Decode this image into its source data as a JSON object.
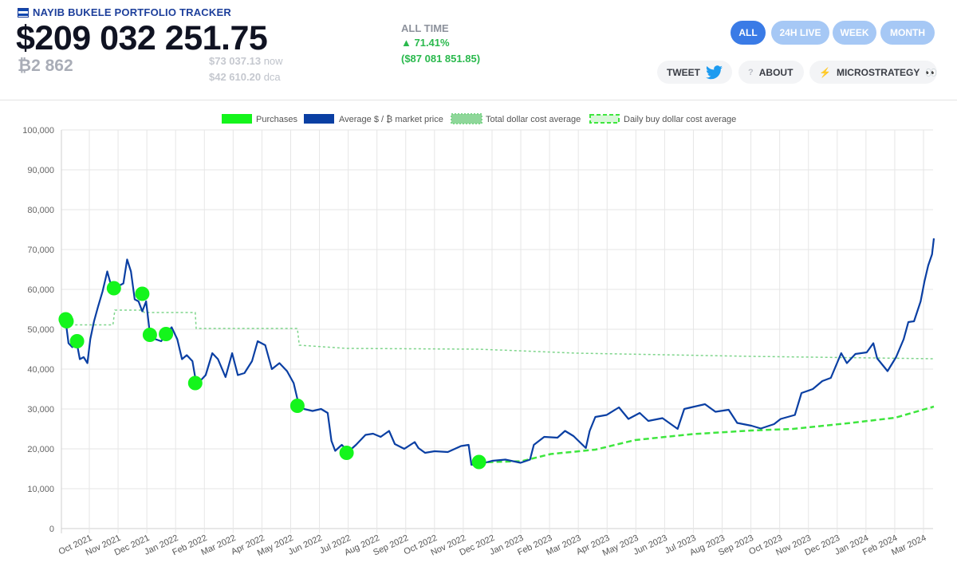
{
  "header": {
    "brand_title": "NAYIB BUKELE PORTFOLIO TRACKER",
    "portfolio_value": "$209 032 251.75",
    "btc_holdings": "₿2 862",
    "price_now_value": "$73 037.13",
    "price_now_label": "now",
    "price_dca_value": "$42 610.20",
    "price_dca_label": "dca",
    "alltime_label": "ALL TIME",
    "alltime_pct": "▲ 71.41%",
    "alltime_abs": "($87 081 851.85)"
  },
  "periods": [
    {
      "label": "ALL",
      "active": true
    },
    {
      "label": "24H LIVE",
      "active": false
    },
    {
      "label": "WEEK",
      "active": false
    },
    {
      "label": "MONTH",
      "active": false
    }
  ],
  "actions": {
    "tweet_label": "TWEET",
    "about_label": "ABOUT",
    "microstrategy_label": "MICROSTRATEGY",
    "about_icon": "question-icon",
    "tweet_icon": "twitter-bird-icon",
    "microstrategy_icon": "lightning-icon",
    "microstrategy_suffix": "👀"
  },
  "chart_data": {
    "type": "line",
    "legend": [
      {
        "label": "Purchases",
        "color": "#14f51c",
        "style": "filled"
      },
      {
        "label": "Average $ / ₿ market price",
        "color": "#0a3fa3",
        "style": "solid"
      },
      {
        "label": "Total dollar cost average",
        "color": "#7ed58b",
        "style": "dotted"
      },
      {
        "label": "Daily buy dollar cost average",
        "color": "#3ee63e",
        "style": "dashed"
      }
    ],
    "legend_position": "top-center",
    "ylim": [
      0,
      100000
    ],
    "y_ticks": [
      "0",
      "10,000",
      "20,000",
      "30,000",
      "40,000",
      "50,000",
      "60,000",
      "70,000",
      "80,000",
      "90,000",
      "100,000"
    ],
    "x_ticks": [
      "Oct 2021",
      "Nov 2021",
      "Dec 2021",
      "Jan 2022",
      "Feb 2022",
      "Mar 2022",
      "Apr 2022",
      "May 2022",
      "Jun 2022",
      "Jul 2022",
      "Aug 2022",
      "Sep 2022",
      "Oct 2022",
      "Nov 2022",
      "Dec 2022",
      "Jan 2023",
      "Feb 2023",
      "Mar 2023",
      "Apr 2023",
      "May 2023",
      "Jun 2023",
      "Jul 2023",
      "Aug 2023",
      "Sep 2023",
      "Oct 2023",
      "Nov 2023",
      "Dec 2023",
      "Jan 2024",
      "Feb 2024",
      "Mar 2024"
    ],
    "grid": true,
    "series": [
      {
        "name": "Average $ / ₿ market price",
        "points": [
          [
            "2021-09-06",
            52000
          ],
          [
            "2021-09-09",
            46500
          ],
          [
            "2021-09-13",
            45500
          ],
          [
            "2021-09-17",
            47500
          ],
          [
            "2021-09-21",
            42500
          ],
          [
            "2021-09-25",
            43000
          ],
          [
            "2021-09-29",
            41500
          ],
          [
            "2021-10-02",
            47500
          ],
          [
            "2021-10-06",
            52000
          ],
          [
            "2021-10-10",
            55500
          ],
          [
            "2021-10-15",
            59500
          ],
          [
            "2021-10-20",
            64500
          ],
          [
            "2021-10-24",
            61000
          ],
          [
            "2021-10-28",
            60500
          ],
          [
            "2021-11-02",
            61000
          ],
          [
            "2021-11-06",
            61500
          ],
          [
            "2021-11-10",
            67500
          ],
          [
            "2021-11-14",
            64500
          ],
          [
            "2021-11-18",
            57500
          ],
          [
            "2021-11-22",
            57000
          ],
          [
            "2021-11-26",
            54500
          ],
          [
            "2021-11-30",
            57000
          ],
          [
            "2021-12-04",
            49000
          ],
          [
            "2021-12-10",
            47500
          ],
          [
            "2021-12-16",
            47000
          ],
          [
            "2021-12-22",
            49000
          ],
          [
            "2021-12-27",
            50500
          ],
          [
            "2022-01-02",
            47500
          ],
          [
            "2022-01-07",
            42500
          ],
          [
            "2022-01-12",
            43500
          ],
          [
            "2022-01-18",
            42000
          ],
          [
            "2022-01-22",
            36500
          ],
          [
            "2022-01-26",
            37000
          ],
          [
            "2022-02-01",
            38500
          ],
          [
            "2022-02-08",
            44000
          ],
          [
            "2022-02-14",
            42500
          ],
          [
            "2022-02-22",
            38000
          ],
          [
            "2022-03-01",
            44000
          ],
          [
            "2022-03-07",
            38500
          ],
          [
            "2022-03-14",
            39000
          ],
          [
            "2022-03-22",
            42000
          ],
          [
            "2022-03-28",
            47000
          ],
          [
            "2022-04-05",
            46000
          ],
          [
            "2022-04-12",
            40000
          ],
          [
            "2022-04-20",
            41500
          ],
          [
            "2022-04-28",
            39500
          ],
          [
            "2022-05-05",
            36500
          ],
          [
            "2022-05-10",
            31500
          ],
          [
            "2022-05-16",
            30000
          ],
          [
            "2022-05-25",
            29500
          ],
          [
            "2022-06-03",
            30000
          ],
          [
            "2022-06-10",
            29000
          ],
          [
            "2022-06-14",
            22000
          ],
          [
            "2022-06-18",
            19500
          ],
          [
            "2022-06-25",
            21000
          ],
          [
            "2022-07-02",
            19300
          ],
          [
            "2022-07-10",
            21000
          ],
          [
            "2022-07-20",
            23500
          ],
          [
            "2022-07-28",
            23800
          ],
          [
            "2022-08-05",
            23000
          ],
          [
            "2022-08-14",
            24500
          ],
          [
            "2022-08-20",
            21200
          ],
          [
            "2022-08-30",
            20000
          ],
          [
            "2022-09-10",
            21700
          ],
          [
            "2022-09-14",
            20200
          ],
          [
            "2022-09-21",
            19000
          ],
          [
            "2022-10-01",
            19400
          ],
          [
            "2022-10-15",
            19200
          ],
          [
            "2022-10-29",
            20700
          ],
          [
            "2022-11-06",
            21000
          ],
          [
            "2022-11-09",
            16000
          ],
          [
            "2022-11-20",
            16300
          ],
          [
            "2022-12-01",
            17000
          ],
          [
            "2022-12-15",
            17300
          ],
          [
            "2022-12-31",
            16500
          ],
          [
            "2023-01-10",
            17300
          ],
          [
            "2023-01-14",
            21000
          ],
          [
            "2023-01-25",
            23000
          ],
          [
            "2023-02-08",
            22800
          ],
          [
            "2023-02-16",
            24500
          ],
          [
            "2023-02-25",
            23200
          ],
          [
            "2023-03-10",
            20200
          ],
          [
            "2023-03-14",
            24500
          ],
          [
            "2023-03-20",
            28000
          ],
          [
            "2023-04-01",
            28500
          ],
          [
            "2023-04-14",
            30400
          ],
          [
            "2023-04-24",
            27500
          ],
          [
            "2023-05-06",
            29000
          ],
          [
            "2023-05-15",
            27000
          ],
          [
            "2023-05-30",
            27700
          ],
          [
            "2023-06-15",
            25000
          ],
          [
            "2023-06-22",
            30000
          ],
          [
            "2023-07-01",
            30500
          ],
          [
            "2023-07-14",
            31200
          ],
          [
            "2023-07-25",
            29300
          ],
          [
            "2023-08-08",
            29800
          ],
          [
            "2023-08-17",
            26500
          ],
          [
            "2023-09-01",
            25800
          ],
          [
            "2023-09-11",
            25100
          ],
          [
            "2023-09-25",
            26200
          ],
          [
            "2023-10-02",
            27500
          ],
          [
            "2023-10-17",
            28500
          ],
          [
            "2023-10-24",
            34000
          ],
          [
            "2023-11-05",
            35000
          ],
          [
            "2023-11-15",
            37000
          ],
          [
            "2023-11-24",
            37800
          ],
          [
            "2023-12-05",
            44000
          ],
          [
            "2023-12-11",
            41500
          ],
          [
            "2023-12-20",
            43800
          ],
          [
            "2024-01-01",
            44200
          ],
          [
            "2024-01-08",
            46500
          ],
          [
            "2024-01-12",
            42700
          ],
          [
            "2024-01-23",
            39500
          ],
          [
            "2024-02-01",
            43000
          ],
          [
            "2024-02-09",
            47500
          ],
          [
            "2024-02-14",
            51800
          ],
          [
            "2024-02-20",
            52000
          ],
          [
            "2024-02-27",
            57000
          ],
          [
            "2024-03-02",
            62000
          ],
          [
            "2024-03-06",
            66000
          ],
          [
            "2024-03-10",
            68800
          ],
          [
            "2024-03-12",
            72800
          ]
        ]
      },
      {
        "name": "Total dollar cost average",
        "points": [
          [
            "2021-09-06",
            51500
          ],
          [
            "2021-09-16",
            51100
          ],
          [
            "2021-10-26",
            51100
          ],
          [
            "2021-10-28",
            54800
          ],
          [
            "2021-11-26",
            54800
          ],
          [
            "2021-11-28",
            54200
          ],
          [
            "2022-01-21",
            54200
          ],
          [
            "2022-01-22",
            50200
          ],
          [
            "2022-05-09",
            50200
          ],
          [
            "2022-05-11",
            46000
          ],
          [
            "2022-06-30",
            45200
          ],
          [
            "2022-11-17",
            45000
          ],
          [
            "2023-03-01",
            44000
          ],
          [
            "2023-09-01",
            43200
          ],
          [
            "2024-03-12",
            42610
          ]
        ]
      },
      {
        "name": "Daily buy dollar cost average",
        "points": [
          [
            "2022-11-17",
            16600
          ],
          [
            "2023-01-01",
            16900
          ],
          [
            "2023-02-01",
            18700
          ],
          [
            "2023-03-20",
            19800
          ],
          [
            "2023-05-01",
            22200
          ],
          [
            "2023-07-01",
            23700
          ],
          [
            "2023-09-01",
            24600
          ],
          [
            "2023-10-15",
            25000
          ],
          [
            "2023-12-15",
            26500
          ],
          [
            "2024-01-31",
            27800
          ],
          [
            "2024-03-12",
            30600
          ]
        ]
      },
      {
        "name": "Purchases",
        "points": [
          [
            "2021-09-06",
            52500
          ],
          [
            "2021-09-07",
            52000
          ],
          [
            "2021-09-18",
            47000
          ],
          [
            "2021-10-27",
            60300
          ],
          [
            "2021-11-26",
            58900
          ],
          [
            "2021-12-04",
            48600
          ],
          [
            "2021-12-21",
            48800
          ],
          [
            "2022-01-21",
            36500
          ],
          [
            "2022-05-09",
            30800
          ],
          [
            "2022-06-30",
            19000
          ],
          [
            "2022-11-17",
            16700
          ]
        ]
      }
    ]
  }
}
